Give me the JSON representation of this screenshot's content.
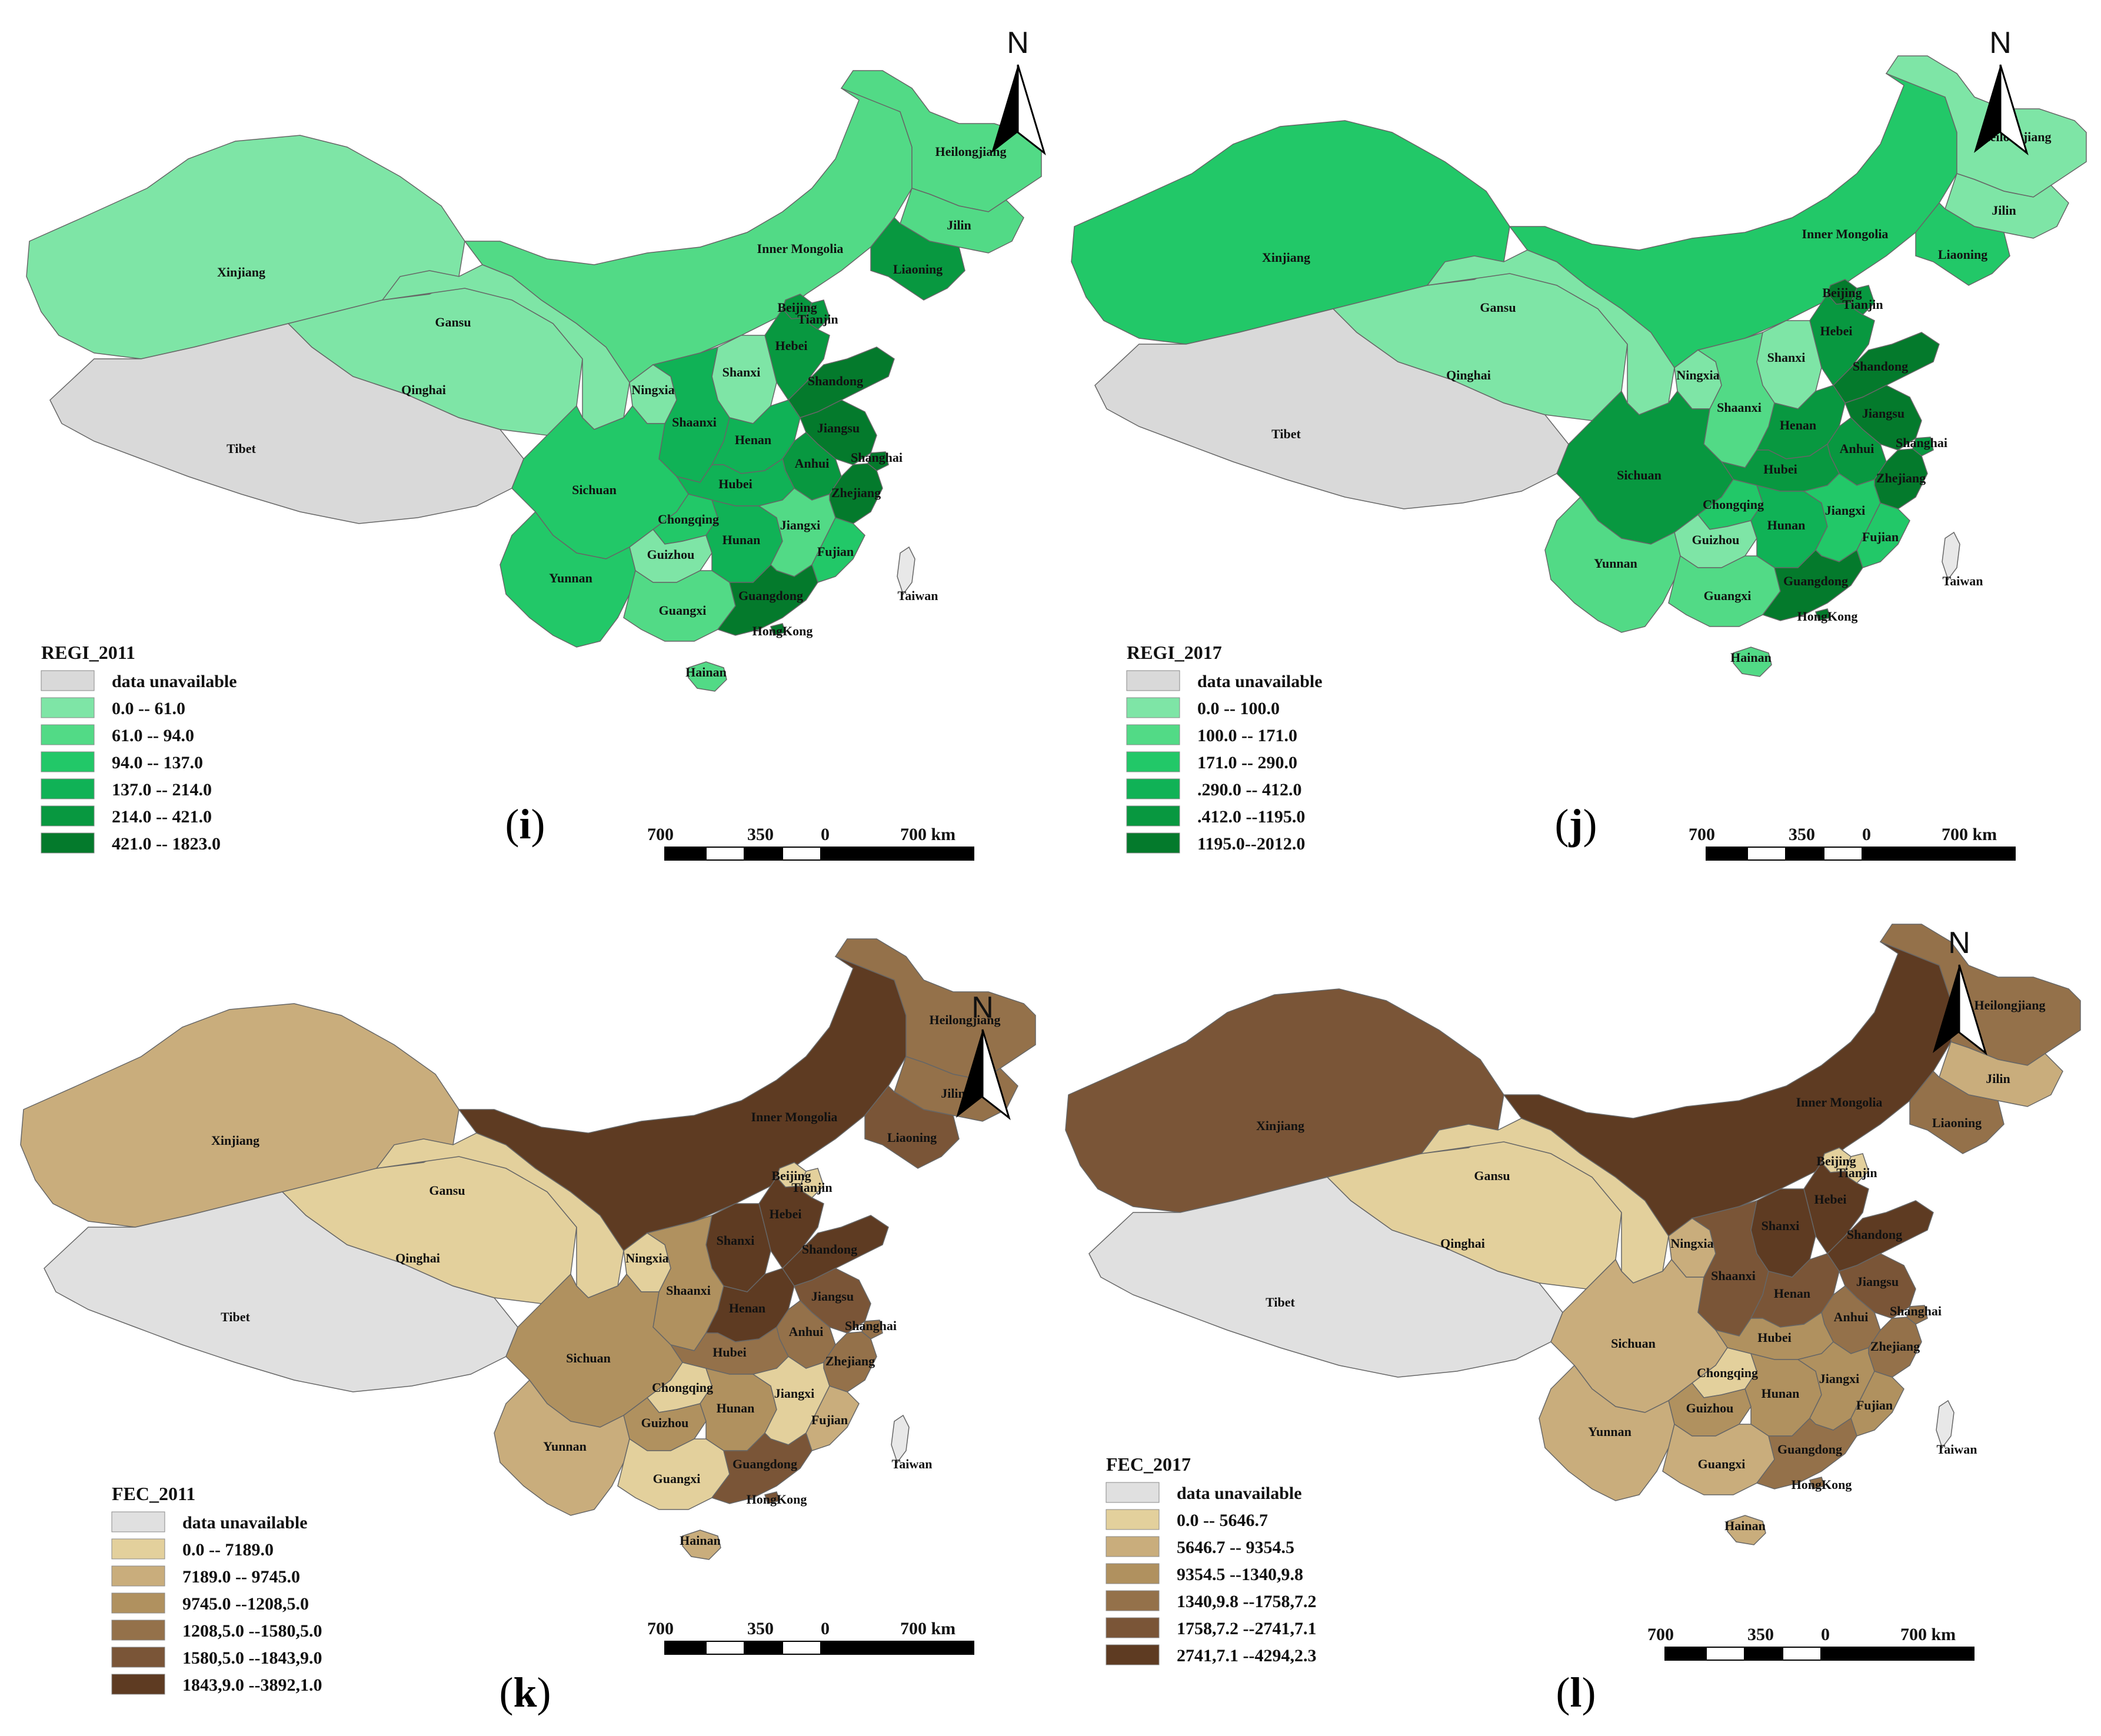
{
  "palettes": {
    "green": [
      "#d9d9d9",
      "#7ee5a6",
      "#52da86",
      "#22c868",
      "#10b256",
      "#089840",
      "#047a2c"
    ],
    "brown": [
      "#e0e0e0",
      "#e3d09c",
      "#c9ad7c",
      "#b0915f",
      "#94714a",
      "#7a5537",
      "#5e3b22"
    ]
  },
  "panels": [
    {
      "letter": "i",
      "palette": "green",
      "legend_title": "REGI_2011",
      "legend": [
        "data unavailable",
        "0.0   --   61.0",
        "61.0   --   94.0",
        "94.0  -- 137.0",
        "137.0  -- 214.0",
        "214.0  -- 421.0",
        "421.0 -- 1823.0"
      ],
      "classes": {
        "Xinjiang": 1,
        "Tibet": 0,
        "Qinghai": 1,
        "Gansu": 1,
        "Inner Mongolia": 2,
        "Heilongjiang": 2,
        "Jilin": 2,
        "Liaoning": 5,
        "Beijing": 5,
        "Tianjin": 5,
        "Hebei": 5,
        "Shanxi": 1,
        "Shaanxi": 4,
        "Ningxia": 1,
        "Henan": 4,
        "Shandong": 6,
        "Jiangsu": 6,
        "Anhui": 5,
        "Shanghai": 6,
        "Zhejiang": 6,
        "Hubei": 4,
        "Sichuan": 3,
        "Chongqing": 3,
        "Guizhou": 1,
        "Hunan": 4,
        "Jiangxi": 2,
        "Fujian": 3,
        "Yunnan": 3,
        "Guangxi": 2,
        "Guangdong": 6,
        "Hong Kong": 6,
        "Hainan": 2
      }
    },
    {
      "letter": "j",
      "palette": "green",
      "legend_title": "REGI_2017",
      "legend": [
        "data unavailable",
        "0.0   --   100.0",
        "100.0 --  171.0",
        "171.0 --  290.0",
        ".290.0  -- 412.0",
        ".412.0 --1195.0",
        "1195.0--2012.0"
      ],
      "classes": {
        "Xinjiang": 3,
        "Tibet": 0,
        "Qinghai": 1,
        "Gansu": 1,
        "Inner Mongolia": 3,
        "Heilongjiang": 1,
        "Jilin": 1,
        "Liaoning": 3,
        "Beijing": 6,
        "Tianjin": 5,
        "Hebei": 5,
        "Shanxi": 1,
        "Shaanxi": 2,
        "Ningxia": 1,
        "Henan": 5,
        "Shandong": 6,
        "Jiangsu": 6,
        "Anhui": 5,
        "Shanghai": 5,
        "Zhejiang": 6,
        "Hubei": 5,
        "Sichuan": 5,
        "Chongqing": 3,
        "Guizhou": 1,
        "Hunan": 4,
        "Jiangxi": 3,
        "Fujian": 3,
        "Yunnan": 2,
        "Guangxi": 2,
        "Guangdong": 6,
        "Hong Kong": 6,
        "Hainan": 2
      }
    },
    {
      "letter": "k",
      "palette": "brown",
      "legend_title": "FEC_2011",
      "legend": [
        "data unavailable",
        "0.0     --     7189.0",
        "7189.0  --  9745.0",
        "9745.0 --1208,5.0",
        "1208,5.0 --1580,5.0",
        "1580,5.0 --1843,9.0",
        "1843,9.0 --3892,1.0"
      ],
      "classes": {
        "Xinjiang": 2,
        "Tibet": 0,
        "Qinghai": 1,
        "Gansu": 1,
        "Inner Mongolia": 6,
        "Heilongjiang": 4,
        "Jilin": 4,
        "Liaoning": 5,
        "Beijing": 1,
        "Tianjin": 1,
        "Hebei": 6,
        "Shanxi": 6,
        "Shaanxi": 3,
        "Ningxia": 1,
        "Henan": 6,
        "Shandong": 6,
        "Jiangsu": 5,
        "Anhui": 4,
        "Shanghai": 4,
        "Zhejiang": 4,
        "Hubei": 4,
        "Sichuan": 3,
        "Chongqing": 1,
        "Guizhou": 3,
        "Hunan": 3,
        "Jiangxi": 1,
        "Fujian": 2,
        "Yunnan": 2,
        "Guangxi": 1,
        "Guangdong": 5,
        "Hong Kong": 5,
        "Hainan": 2
      }
    },
    {
      "letter": "l",
      "palette": "brown",
      "legend_title": "FEC_2017",
      "legend": [
        "data unavailable",
        "0.0     --     5646.7",
        "5646.7  --  9354.5",
        "9354.5 --1340,9.8",
        "1340,9.8 --1758,7.2",
        "1758,7.2 --2741,7.1",
        "2741,7.1 --4294,2.3"
      ],
      "classes": {
        "Xinjiang": 5,
        "Tibet": 0,
        "Qinghai": 1,
        "Gansu": 1,
        "Inner Mongolia": 6,
        "Heilongjiang": 4,
        "Jilin": 2,
        "Liaoning": 4,
        "Beijing": 1,
        "Tianjin": 1,
        "Hebei": 6,
        "Shanxi": 6,
        "Shaanxi": 5,
        "Ningxia": 2,
        "Henan": 5,
        "Shandong": 6,
        "Jiangsu": 5,
        "Anhui": 4,
        "Shanghai": 4,
        "Zhejiang": 4,
        "Hubei": 3,
        "Sichuan": 2,
        "Chongqing": 1,
        "Guizhou": 3,
        "Hunan": 3,
        "Jiangxi": 3,
        "Fujian": 3,
        "Yunnan": 2,
        "Guangxi": 2,
        "Guangdong": 4,
        "Hong Kong": 4,
        "Hainan": 2
      }
    }
  ],
  "provinces": [
    "Xinjiang",
    "Tibet",
    "Qinghai",
    "Gansu",
    "Inner Mongolia",
    "Heilongjiang",
    "Jilin",
    "Liaoning",
    "Beijing",
    "Tianjin",
    "Hebei",
    "Shanxi",
    "Shaanxi",
    "Ningxia",
    "Henan",
    "Shandong",
    "Jiangsu",
    "Anhui",
    "Shanghai",
    "Zhejiang",
    "Hubei",
    "Sichuan",
    "Chongqing",
    "Guizhou",
    "Hunan",
    "Jiangxi",
    "Fujian",
    "Yunnan",
    "Guangxi",
    "Guangdong",
    "Hong Kong",
    "Hainan"
  ],
  "extra_labels": {
    "Taiwan": "Taiwan",
    "Hong Kong label": "HongKong"
  },
  "taiwan_color": "#e8e8e8",
  "north_label": "N",
  "scale_labels": [
    "700",
    "350",
    "0",
    "700 km"
  ]
}
